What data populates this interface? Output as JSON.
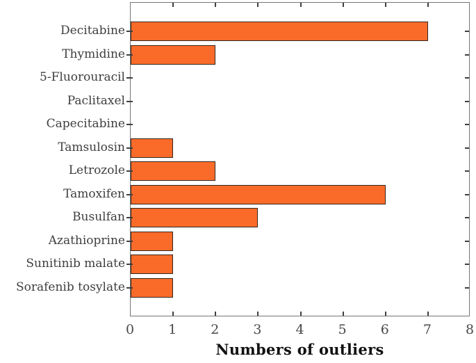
{
  "figure": {
    "background": "#ffffff"
  },
  "chart_data": {
    "type": "bar",
    "orientation": "horizontal",
    "title": "",
    "xlabel": "Numbers of outliers",
    "ylabel": "",
    "categories": [
      "Decitabine",
      "Thymidine",
      "5-Fluorouracil",
      "Paclitaxel",
      "Capecitabine",
      "Tamsulosin",
      "Letrozole",
      "Tamoxifen",
      "Busulfan",
      "Azathioprine",
      "Sunitinib malate",
      "Sorafenib tosylate"
    ],
    "values": [
      7,
      2,
      0,
      0,
      0,
      1,
      2,
      6,
      3,
      1,
      1,
      1
    ],
    "xlim": [
      0,
      8
    ],
    "xticks": [
      0,
      1,
      2,
      3,
      4,
      5,
      6,
      7,
      8
    ],
    "grid": false,
    "legend": null,
    "colors": {
      "bar_fill": "#fa6b2a",
      "bar_edge": "#33261d",
      "spine": "#757575",
      "tick_mark": "#3f3f3f",
      "y_label_text": "#3e3e3e",
      "x_tick_text": "#494949",
      "x_label_text": "#111111"
    }
  }
}
